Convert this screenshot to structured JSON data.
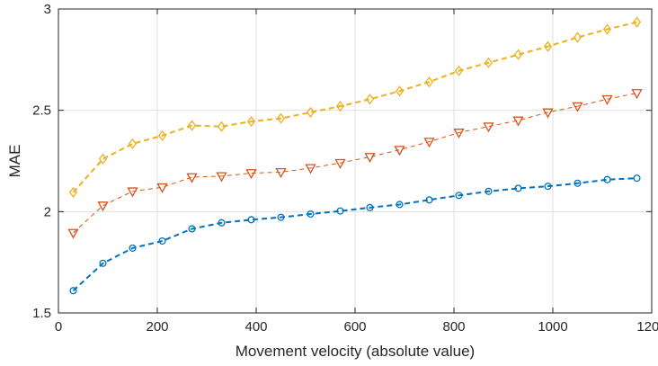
{
  "chart_data": {
    "type": "line",
    "title": "",
    "xlabel": "Movement velocity (absolute value)",
    "ylabel": "MAE",
    "xlim": [
      0,
      1200
    ],
    "ylim": [
      1.5,
      3
    ],
    "xticks": [
      0,
      200,
      400,
      600,
      800,
      1000,
      1200
    ],
    "yticks": [
      1.5,
      2,
      2.5,
      3
    ],
    "xtick_labels": [
      "0",
      "200",
      "400",
      "600",
      "800",
      "1000",
      "1200"
    ],
    "ytick_labels": [
      "1.5",
      "2",
      "2.5",
      "3"
    ],
    "grid": true,
    "legend": "none",
    "x": [
      30,
      90,
      150,
      210,
      270,
      330,
      390,
      450,
      510,
      570,
      630,
      690,
      750,
      810,
      870,
      930,
      990,
      1050,
      1110,
      1170
    ],
    "series": [
      {
        "color": "#0072bd",
        "marker": "circle",
        "line_style": "dashed",
        "values": [
          1.61,
          1.745,
          1.82,
          1.855,
          1.915,
          1.945,
          1.96,
          1.972,
          1.988,
          2.003,
          2.02,
          2.035,
          2.058,
          2.08,
          2.1,
          2.115,
          2.125,
          2.14,
          2.158,
          2.165
        ]
      },
      {
        "color": "#d95319",
        "marker": "triangle-down",
        "line_style": "dashed",
        "values": [
          1.895,
          2.03,
          2.1,
          2.12,
          2.17,
          2.175,
          2.19,
          2.195,
          2.215,
          2.24,
          2.27,
          2.305,
          2.345,
          2.39,
          2.42,
          2.45,
          2.49,
          2.52,
          2.555,
          2.585
        ]
      },
      {
        "color": "#edb120",
        "marker": "diamond",
        "line_style": "dashed",
        "values": [
          2.095,
          2.26,
          2.335,
          2.375,
          2.425,
          2.42,
          2.445,
          2.46,
          2.49,
          2.52,
          2.555,
          2.595,
          2.64,
          2.695,
          2.735,
          2.775,
          2.815,
          2.86,
          2.9,
          2.935
        ]
      }
    ]
  }
}
